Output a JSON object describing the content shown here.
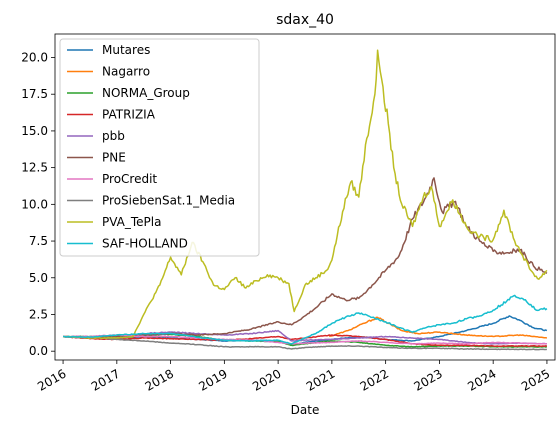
{
  "chart_data": {
    "type": "line",
    "title": "sdax_40",
    "xlabel": "Date",
    "ylabel": "",
    "x_ticks": [
      "2016",
      "2017",
      "2018",
      "2019",
      "2020",
      "2021",
      "2022",
      "2023",
      "2024",
      "2025"
    ],
    "y_ticks": [
      "0.0",
      "2.5",
      "5.0",
      "7.5",
      "10.0",
      "12.5",
      "15.0",
      "17.5",
      "20.0"
    ],
    "xlim": [
      2015.85,
      2025.15
    ],
    "ylim": [
      -0.6,
      21.6
    ],
    "grid": false,
    "legend_position": "upper-left",
    "series": [
      {
        "name": "Mutares",
        "color": "#1f77b4",
        "points": [
          [
            2016.0,
            1.0
          ],
          [
            2016.5,
            0.95
          ],
          [
            2017.0,
            0.9
          ],
          [
            2017.5,
            1.0
          ],
          [
            2018.0,
            0.9
          ],
          [
            2018.5,
            0.8
          ],
          [
            2019.0,
            0.7
          ],
          [
            2019.5,
            0.75
          ],
          [
            2020.0,
            0.7
          ],
          [
            2020.25,
            0.4
          ],
          [
            2020.5,
            0.6
          ],
          [
            2021.0,
            0.8
          ],
          [
            2021.5,
            1.0
          ],
          [
            2022.0,
            0.8
          ],
          [
            2022.5,
            0.7
          ],
          [
            2023.0,
            1.0
          ],
          [
            2023.5,
            1.4
          ],
          [
            2024.0,
            1.9
          ],
          [
            2024.3,
            2.4
          ],
          [
            2024.5,
            2.1
          ],
          [
            2024.75,
            1.6
          ],
          [
            2025.0,
            1.4
          ]
        ]
      },
      {
        "name": "Nagarro",
        "color": "#ff7f0e",
        "points": [
          [
            2020.95,
            1.0
          ],
          [
            2021.3,
            1.4
          ],
          [
            2021.6,
            1.9
          ],
          [
            2021.85,
            2.3
          ],
          [
            2022.0,
            2.0
          ],
          [
            2022.3,
            1.4
          ],
          [
            2022.6,
            1.2
          ],
          [
            2023.0,
            1.3
          ],
          [
            2023.5,
            1.1
          ],
          [
            2024.0,
            1.0
          ],
          [
            2024.5,
            1.1
          ],
          [
            2025.0,
            0.9
          ]
        ]
      },
      {
        "name": "NORMA_Group",
        "color": "#2ca02c",
        "points": [
          [
            2016.0,
            1.0
          ],
          [
            2016.5,
            1.0
          ],
          [
            2017.0,
            1.05
          ],
          [
            2017.5,
            1.1
          ],
          [
            2018.0,
            1.15
          ],
          [
            2018.5,
            1.0
          ],
          [
            2019.0,
            0.75
          ],
          [
            2019.5,
            0.7
          ],
          [
            2020.0,
            0.65
          ],
          [
            2020.25,
            0.4
          ],
          [
            2020.5,
            0.5
          ],
          [
            2021.0,
            0.7
          ],
          [
            2021.5,
            0.6
          ],
          [
            2022.0,
            0.4
          ],
          [
            2022.5,
            0.3
          ],
          [
            2023.0,
            0.35
          ],
          [
            2023.5,
            0.35
          ],
          [
            2024.0,
            0.3
          ],
          [
            2024.5,
            0.3
          ],
          [
            2025.0,
            0.3
          ]
        ]
      },
      {
        "name": "PATRIZIA",
        "color": "#d62728",
        "points": [
          [
            2016.0,
            1.0
          ],
          [
            2016.5,
            0.85
          ],
          [
            2017.0,
            0.8
          ],
          [
            2017.5,
            0.9
          ],
          [
            2018.0,
            0.85
          ],
          [
            2018.5,
            0.8
          ],
          [
            2019.0,
            0.75
          ],
          [
            2019.5,
            0.85
          ],
          [
            2020.0,
            1.0
          ],
          [
            2020.25,
            0.8
          ],
          [
            2020.5,
            0.9
          ],
          [
            2021.0,
            1.1
          ],
          [
            2021.5,
            1.0
          ],
          [
            2022.0,
            0.8
          ],
          [
            2022.5,
            0.5
          ],
          [
            2023.0,
            0.4
          ],
          [
            2023.5,
            0.4
          ],
          [
            2024.0,
            0.35
          ],
          [
            2024.5,
            0.35
          ],
          [
            2025.0,
            0.35
          ]
        ]
      },
      {
        "name": "pbb",
        "color": "#9467bd",
        "points": [
          [
            2016.0,
            1.0
          ],
          [
            2016.5,
            0.9
          ],
          [
            2017.0,
            1.0
          ],
          [
            2017.5,
            1.2
          ],
          [
            2018.0,
            1.3
          ],
          [
            2018.5,
            1.2
          ],
          [
            2019.0,
            1.1
          ],
          [
            2019.5,
            1.2
          ],
          [
            2020.0,
            1.4
          ],
          [
            2020.25,
            0.7
          ],
          [
            2020.5,
            0.75
          ],
          [
            2021.0,
            0.8
          ],
          [
            2021.5,
            0.9
          ],
          [
            2022.0,
            1.0
          ],
          [
            2022.5,
            0.9
          ],
          [
            2023.0,
            0.8
          ],
          [
            2023.5,
            0.6
          ],
          [
            2024.0,
            0.5
          ],
          [
            2024.5,
            0.55
          ],
          [
            2025.0,
            0.5
          ]
        ]
      },
      {
        "name": "PNE",
        "color": "#8c564b",
        "points": [
          [
            2016.0,
            1.0
          ],
          [
            2016.5,
            0.9
          ],
          [
            2017.0,
            1.0
          ],
          [
            2017.5,
            1.1
          ],
          [
            2018.0,
            1.2
          ],
          [
            2018.5,
            1.1
          ],
          [
            2019.0,
            1.2
          ],
          [
            2019.5,
            1.5
          ],
          [
            2020.0,
            2.0
          ],
          [
            2020.25,
            1.8
          ],
          [
            2020.5,
            2.4
          ],
          [
            2020.75,
            3.1
          ],
          [
            2021.0,
            3.9
          ],
          [
            2021.25,
            3.5
          ],
          [
            2021.5,
            3.6
          ],
          [
            2021.75,
            4.5
          ],
          [
            2022.0,
            5.5
          ],
          [
            2022.25,
            6.5
          ],
          [
            2022.5,
            9.0
          ],
          [
            2022.75,
            10.5
          ],
          [
            2022.9,
            11.8
          ],
          [
            2023.05,
            9.5
          ],
          [
            2023.3,
            10.2
          ],
          [
            2023.5,
            8.5
          ],
          [
            2023.75,
            7.5
          ],
          [
            2024.0,
            6.8
          ],
          [
            2024.25,
            6.7
          ],
          [
            2024.5,
            6.9
          ],
          [
            2024.75,
            5.8
          ],
          [
            2025.0,
            5.3
          ]
        ]
      },
      {
        "name": "ProCredit",
        "color": "#e377c2",
        "points": [
          [
            2016.0,
            1.0
          ],
          [
            2016.5,
            1.0
          ],
          [
            2017.0,
            1.1
          ],
          [
            2017.5,
            1.0
          ],
          [
            2018.0,
            1.0
          ],
          [
            2018.5,
            0.9
          ],
          [
            2019.0,
            0.8
          ],
          [
            2019.5,
            0.75
          ],
          [
            2020.0,
            0.6
          ],
          [
            2020.25,
            0.5
          ],
          [
            2020.5,
            0.55
          ],
          [
            2021.0,
            0.6
          ],
          [
            2021.5,
            0.7
          ],
          [
            2022.0,
            0.6
          ],
          [
            2022.5,
            0.5
          ],
          [
            2023.0,
            0.55
          ],
          [
            2023.5,
            0.5
          ],
          [
            2024.0,
            0.6
          ],
          [
            2024.5,
            0.55
          ],
          [
            2025.0,
            0.5
          ]
        ]
      },
      {
        "name": "ProSiebenSat.1_Media",
        "color": "#7f7f7f",
        "points": [
          [
            2016.0,
            1.0
          ],
          [
            2016.5,
            0.95
          ],
          [
            2017.0,
            0.8
          ],
          [
            2017.5,
            0.7
          ],
          [
            2018.0,
            0.55
          ],
          [
            2018.5,
            0.45
          ],
          [
            2019.0,
            0.3
          ],
          [
            2019.5,
            0.3
          ],
          [
            2020.0,
            0.3
          ],
          [
            2020.25,
            0.15
          ],
          [
            2020.5,
            0.25
          ],
          [
            2021.0,
            0.35
          ],
          [
            2021.5,
            0.35
          ],
          [
            2022.0,
            0.25
          ],
          [
            2022.5,
            0.2
          ],
          [
            2023.0,
            0.2
          ],
          [
            2023.5,
            0.15
          ],
          [
            2024.0,
            0.13
          ],
          [
            2024.5,
            0.13
          ],
          [
            2025.0,
            0.12
          ]
        ]
      },
      {
        "name": "PVA_TePla",
        "color": "#bcbd22",
        "points": [
          [
            2016.0,
            1.0
          ],
          [
            2016.5,
            0.9
          ],
          [
            2017.0,
            0.9
          ],
          [
            2017.3,
            1.0
          ],
          [
            2017.5,
            2.5
          ],
          [
            2017.8,
            4.5
          ],
          [
            2018.0,
            6.4
          ],
          [
            2018.2,
            5.2
          ],
          [
            2018.4,
            7.4
          ],
          [
            2018.6,
            6.1
          ],
          [
            2018.8,
            4.5
          ],
          [
            2019.0,
            4.2
          ],
          [
            2019.2,
            5.0
          ],
          [
            2019.4,
            4.3
          ],
          [
            2019.6,
            4.8
          ],
          [
            2019.8,
            5.2
          ],
          [
            2020.0,
            5.0
          ],
          [
            2020.2,
            4.6
          ],
          [
            2020.3,
            2.7
          ],
          [
            2020.5,
            4.5
          ],
          [
            2020.7,
            5.0
          ],
          [
            2020.9,
            5.5
          ],
          [
            2021.0,
            6.2
          ],
          [
            2021.2,
            9.5
          ],
          [
            2021.35,
            11.5
          ],
          [
            2021.5,
            10.5
          ],
          [
            2021.65,
            14.5
          ],
          [
            2021.8,
            17.5
          ],
          [
            2021.85,
            20.5
          ],
          [
            2021.95,
            18.0
          ],
          [
            2022.05,
            15.5
          ],
          [
            2022.15,
            12.5
          ],
          [
            2022.3,
            10.0
          ],
          [
            2022.5,
            8.5
          ],
          [
            2022.7,
            10.5
          ],
          [
            2022.85,
            11.2
          ],
          [
            2023.0,
            8.5
          ],
          [
            2023.25,
            10.3
          ],
          [
            2023.5,
            8.5
          ],
          [
            2023.75,
            7.8
          ],
          [
            2024.0,
            7.6
          ],
          [
            2024.2,
            9.6
          ],
          [
            2024.4,
            7.5
          ],
          [
            2024.55,
            6.5
          ],
          [
            2024.7,
            5.5
          ],
          [
            2024.85,
            4.9
          ],
          [
            2025.0,
            5.5
          ]
        ]
      },
      {
        "name": "SAF-HOLLAND",
        "color": "#17becf",
        "points": [
          [
            2016.0,
            1.0
          ],
          [
            2016.5,
            0.95
          ],
          [
            2017.0,
            1.1
          ],
          [
            2017.5,
            1.2
          ],
          [
            2018.0,
            1.2
          ],
          [
            2018.5,
            0.95
          ],
          [
            2019.0,
            0.75
          ],
          [
            2019.5,
            0.7
          ],
          [
            2020.0,
            0.75
          ],
          [
            2020.25,
            0.5
          ],
          [
            2020.5,
            0.9
          ],
          [
            2020.75,
            1.3
          ],
          [
            2021.0,
            1.9
          ],
          [
            2021.25,
            2.3
          ],
          [
            2021.5,
            2.6
          ],
          [
            2021.75,
            2.3
          ],
          [
            2022.0,
            2.0
          ],
          [
            2022.25,
            1.6
          ],
          [
            2022.5,
            1.3
          ],
          [
            2022.75,
            1.6
          ],
          [
            2023.0,
            1.8
          ],
          [
            2023.25,
            1.9
          ],
          [
            2023.5,
            2.2
          ],
          [
            2023.75,
            2.4
          ],
          [
            2024.0,
            2.8
          ],
          [
            2024.25,
            3.4
          ],
          [
            2024.4,
            3.8
          ],
          [
            2024.6,
            3.5
          ],
          [
            2024.8,
            2.8
          ],
          [
            2025.0,
            2.9
          ]
        ]
      }
    ]
  }
}
